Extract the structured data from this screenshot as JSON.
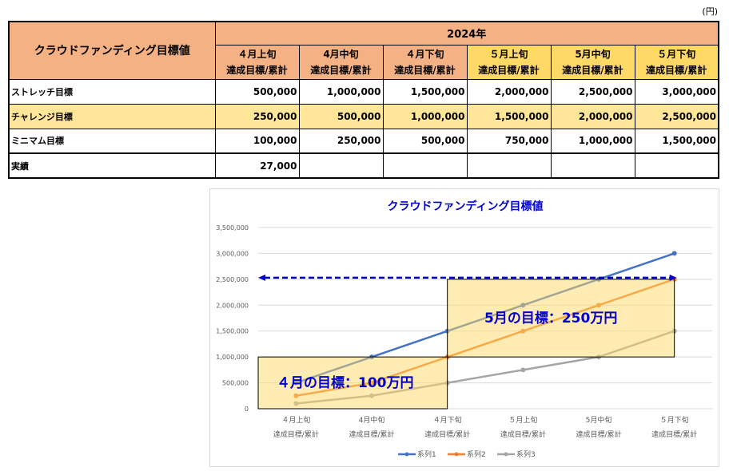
{
  "unit": "(円)",
  "table": {
    "corner": "クラウドファンディング目標値",
    "year": "2024年",
    "columns": [
      {
        "period": "４月上旬",
        "sub": "達成目標/累計"
      },
      {
        "period": "4月中旬",
        "sub": "達成目標/累計"
      },
      {
        "period": "４月下旬",
        "sub": "達成目標/累計"
      },
      {
        "period": "５月上旬",
        "sub": "達成目標/累計"
      },
      {
        "period": "5月中旬",
        "sub": "達成目標/累計"
      },
      {
        "period": "５月下旬",
        "sub": "達成目標/累計"
      }
    ],
    "rows": [
      {
        "label": "ストレッチ目標",
        "values": [
          "500,000",
          "1,000,000",
          "1,500,000",
          "2,000,000",
          "2,500,000",
          "3,000,000"
        ]
      },
      {
        "label": "チャレンジ目標",
        "values": [
          "250,000",
          "500,000",
          "1,000,000",
          "1,500,000",
          "2,000,000",
          "2,500,000"
        ]
      },
      {
        "label": "ミニマム目標",
        "values": [
          "100,000",
          "250,000",
          "500,000",
          "750,000",
          "1,000,000",
          "1,500,000"
        ]
      },
      {
        "label": "実績",
        "values": [
          "27,000",
          "",
          "",
          "",
          "",
          ""
        ]
      }
    ],
    "colors": {
      "header": "#f4b183",
      "may_header": "#ffd966",
      "highlight_row": "#ffe699"
    }
  },
  "chart_data": {
    "type": "line",
    "title": "クラウドファンディング目標値",
    "categories": [
      [
        "４月上旬",
        "達成目標/累計"
      ],
      [
        "4月中旬",
        "達成目標/累計"
      ],
      [
        "４月下旬",
        "達成目標/累計"
      ],
      [
        "５月上旬",
        "達成目標/累計"
      ],
      [
        "5月中旬",
        "達成目標/累計"
      ],
      [
        "５月下旬",
        "達成目標/累計"
      ]
    ],
    "ylim": [
      0,
      3500000
    ],
    "yticks": [
      "0",
      "500,000",
      "1,000,000",
      "1,500,000",
      "2,000,000",
      "2,500,000",
      "3,000,000",
      "3,500,000"
    ],
    "grid": true,
    "legend": "bottom",
    "series": [
      {
        "name": "系列1",
        "color": "#4472c4",
        "values": [
          500000,
          1000000,
          1500000,
          2000000,
          2500000,
          3000000
        ]
      },
      {
        "name": "系列2",
        "color": "#ed7d31",
        "values": [
          250000,
          500000,
          1000000,
          1500000,
          2000000,
          2500000
        ]
      },
      {
        "name": "系列3",
        "color": "#a5a5a5",
        "values": [
          100000,
          250000,
          500000,
          750000,
          1000000,
          1500000
        ]
      }
    ],
    "annotations": [
      {
        "text": "４月の目標：100万円",
        "x_range": [
          0,
          2
        ],
        "y_range": [
          0,
          1000000
        ]
      },
      {
        "text": "5月の目標：250万円",
        "x_range": [
          2,
          5
        ],
        "y_range": [
          1000000,
          2500000
        ]
      }
    ],
    "target_line": {
      "value": 2500000,
      "color": "#0000cc"
    }
  }
}
